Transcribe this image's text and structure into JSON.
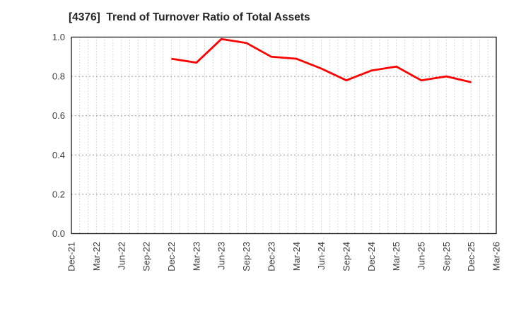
{
  "chart_data": {
    "type": "line",
    "title": "[4376]  Trend of Turnover Ratio of Total Assets",
    "categories": [
      "Dec-21",
      "Mar-22",
      "Jun-22",
      "Sep-22",
      "Dec-22",
      "Mar-23",
      "Jun-23",
      "Sep-23",
      "Dec-23",
      "Mar-24",
      "Jun-24",
      "Sep-24",
      "Dec-24",
      "Mar-25",
      "Jun-25",
      "Sep-25",
      "Dec-25",
      "Mar-26"
    ],
    "series": [
      {
        "color": "#ff0000",
        "values": [
          null,
          null,
          null,
          null,
          0.89,
          0.87,
          0.99,
          0.97,
          0.9,
          0.89,
          0.84,
          0.78,
          0.83,
          0.85,
          0.78,
          0.8,
          0.77,
          null
        ]
      }
    ],
    "xlabel": "",
    "ylabel": "",
    "ylim": [
      0.0,
      1.0
    ],
    "ytick_labels": [
      "0.0",
      "0.2",
      "0.4",
      "0.6",
      "0.8",
      "1.0"
    ],
    "legend": "none",
    "grid": "on",
    "grid_detail": "dotted vertical line per month, dashed horizontal line per 0.2"
  },
  "colors": {
    "line": "#ff0000",
    "title_text": "#262626",
    "tick_text": "#3d3d3d",
    "grid_vertical": "#b0b0b0",
    "grid_horizontal": "#999999",
    "plot_border": "#1a1a1a",
    "background": "#ffffff"
  }
}
